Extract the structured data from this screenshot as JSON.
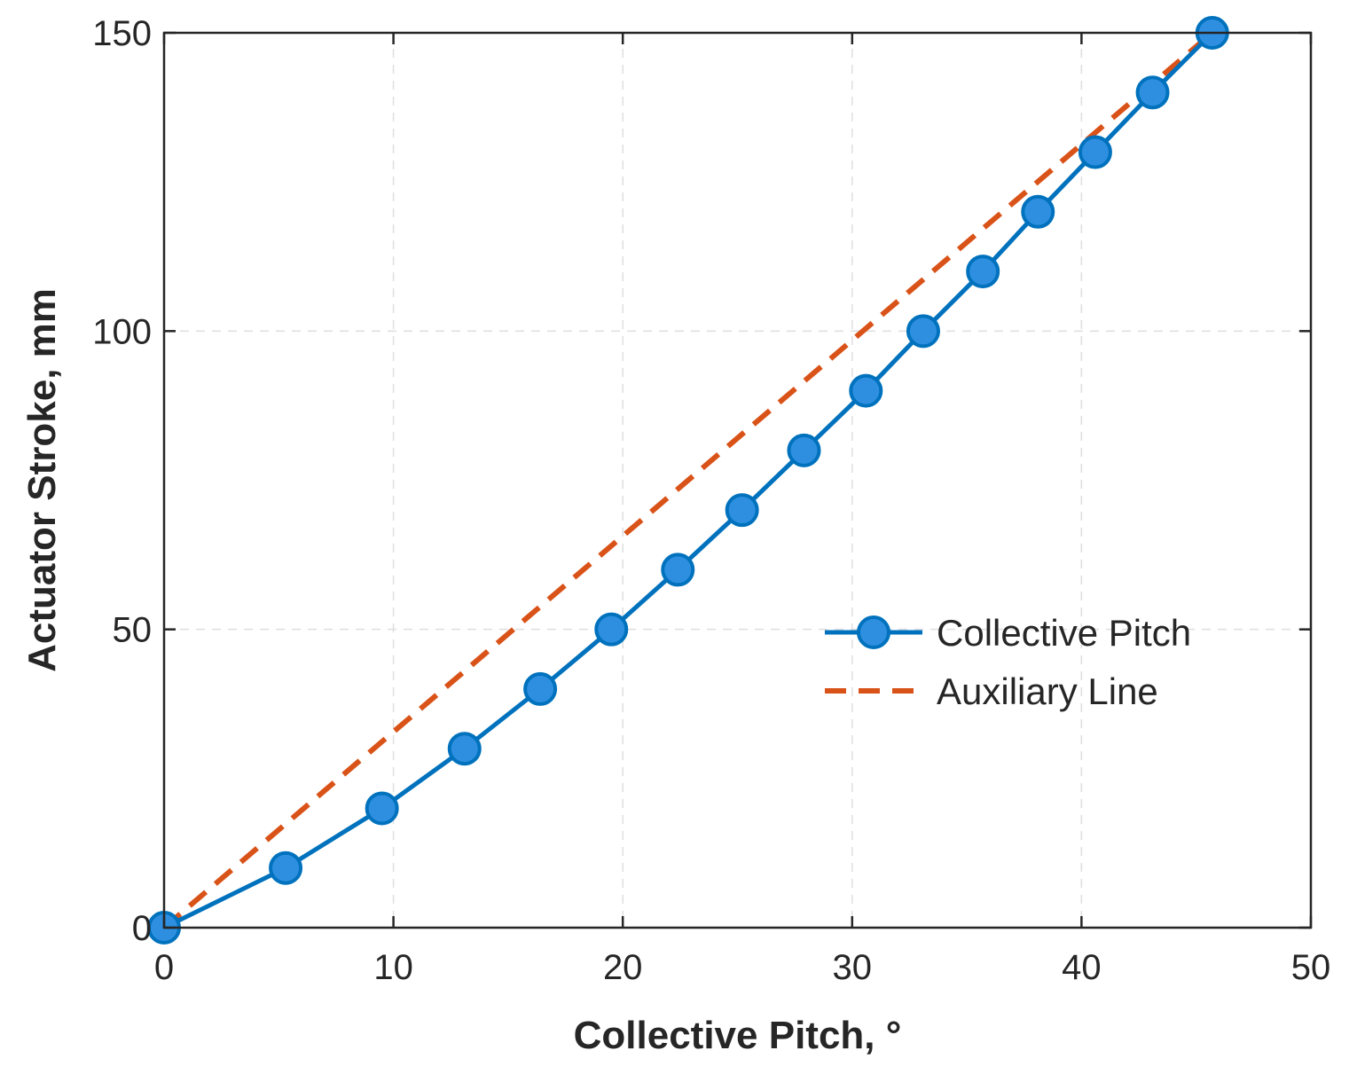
{
  "chart_data": {
    "type": "line",
    "xlabel": "Collective Pitch, °",
    "ylabel": "Actuator Stroke, mm",
    "xlim": [
      0,
      50
    ],
    "ylim": [
      0,
      150
    ],
    "xticks": [
      "0",
      "10",
      "20",
      "30",
      "40",
      "50"
    ],
    "yticks": [
      "0",
      "50",
      "100",
      "150"
    ],
    "grid": true,
    "legend_position": "right",
    "series": [
      {
        "name": "Collective Pitch",
        "style": "solid-with-circle-markers",
        "color": "#0072BD",
        "marker_fill": "#2E8FE0",
        "x": [
          0,
          5.3,
          9.5,
          13.1,
          16.4,
          19.5,
          22.4,
          25.2,
          27.9,
          30.6,
          33.1,
          35.7,
          38.1,
          40.6,
          43.1,
          45.7
        ],
        "y": [
          0,
          10,
          20,
          30,
          40,
          50,
          60,
          70,
          80,
          90,
          100,
          110,
          120,
          130,
          140,
          150
        ]
      },
      {
        "name": "Auxiliary Line",
        "style": "dashed",
        "color": "#D95319",
        "x": [
          0,
          45.7
        ],
        "y": [
          0,
          150
        ]
      }
    ]
  }
}
